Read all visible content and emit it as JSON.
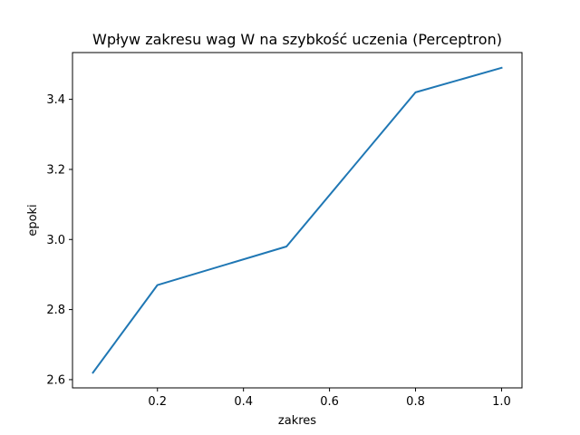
{
  "chart_data": {
    "type": "line",
    "title": "Wpływ zakresu wag W na szybkość uczenia (Perceptron)",
    "xlabel": "zakres",
    "ylabel": "epoki",
    "x": [
      0.05,
      0.2,
      0.5,
      0.8,
      1.0
    ],
    "series": [
      {
        "values": [
          2.62,
          2.87,
          2.98,
          3.42,
          3.49
        ],
        "color": "#1f77b4"
      }
    ],
    "xlim": [
      0.0025,
      1.0475
    ],
    "ylim": [
      2.5765,
      3.5335
    ],
    "xticks": [
      0.2,
      0.4,
      0.6,
      0.8,
      1.0
    ],
    "xtick_labels": [
      "0.2",
      "0.4",
      "0.6",
      "0.8",
      "1.0"
    ],
    "yticks": [
      2.6,
      2.8,
      3.0,
      3.2,
      3.4
    ],
    "ytick_labels": [
      "2.6",
      "2.8",
      "3.0",
      "3.2",
      "3.4"
    ],
    "grid": false
  }
}
